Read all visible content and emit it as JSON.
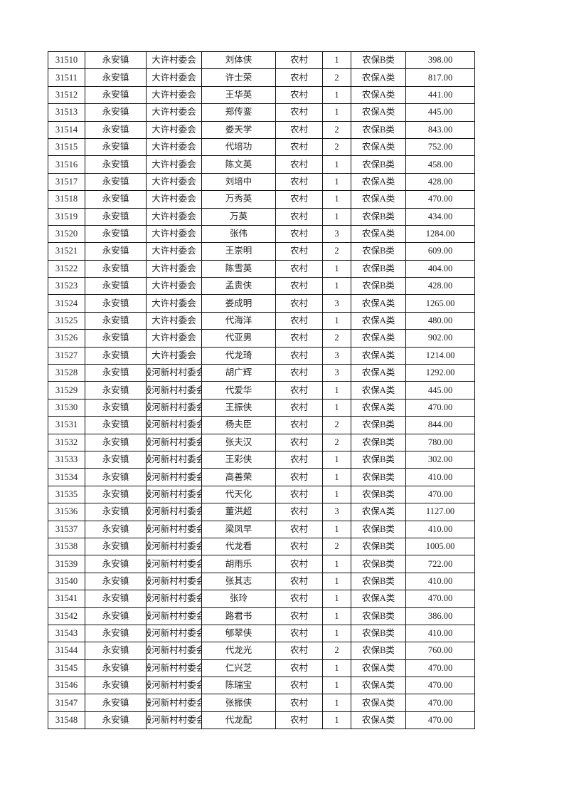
{
  "table": {
    "rows": [
      [
        "31510",
        "永安镇",
        "大许村委会",
        "刘体侠",
        "农村",
        "1",
        "农保B类",
        "398.00"
      ],
      [
        "31511",
        "永安镇",
        "大许村委会",
        "许士荣",
        "农村",
        "2",
        "农保A类",
        "817.00"
      ],
      [
        "31512",
        "永安镇",
        "大许村委会",
        "王华英",
        "农村",
        "1",
        "农保A类",
        "441.00"
      ],
      [
        "31513",
        "永安镇",
        "大许村委会",
        "郑传銮",
        "农村",
        "1",
        "农保A类",
        "445.00"
      ],
      [
        "31514",
        "永安镇",
        "大许村委会",
        "娄天学",
        "农村",
        "2",
        "农保B类",
        "843.00"
      ],
      [
        "31515",
        "永安镇",
        "大许村委会",
        "代培功",
        "农村",
        "2",
        "农保A类",
        "752.00"
      ],
      [
        "31516",
        "永安镇",
        "大许村委会",
        "陈文英",
        "农村",
        "1",
        "农保B类",
        "458.00"
      ],
      [
        "31517",
        "永安镇",
        "大许村委会",
        "刘培中",
        "农村",
        "1",
        "农保A类",
        "428.00"
      ],
      [
        "31518",
        "永安镇",
        "大许村委会",
        "万秀英",
        "农村",
        "1",
        "农保A类",
        "470.00"
      ],
      [
        "31519",
        "永安镇",
        "大许村委会",
        "万英",
        "农村",
        "1",
        "农保B类",
        "434.00"
      ],
      [
        "31520",
        "永安镇",
        "大许村委会",
        "张伟",
        "农村",
        "3",
        "农保A类",
        "1284.00"
      ],
      [
        "31521",
        "永安镇",
        "大许村委会",
        "王崇明",
        "农村",
        "2",
        "农保B类",
        "609.00"
      ],
      [
        "31522",
        "永安镇",
        "大许村委会",
        "陈雪英",
        "农村",
        "1",
        "农保B类",
        "404.00"
      ],
      [
        "31523",
        "永安镇",
        "大许村委会",
        "孟贵侠",
        "农村",
        "1",
        "农保B类",
        "428.00"
      ],
      [
        "31524",
        "永安镇",
        "大许村委会",
        "娄成明",
        "农村",
        "3",
        "农保A类",
        "1265.00"
      ],
      [
        "31525",
        "永安镇",
        "大许村委会",
        "代海洋",
        "农村",
        "1",
        "农保A类",
        "480.00"
      ],
      [
        "31526",
        "永安镇",
        "大许村委会",
        "代亚男",
        "农村",
        "2",
        "农保A类",
        "902.00"
      ],
      [
        "31527",
        "永安镇",
        "大许村委会",
        "代龙琦",
        "农村",
        "3",
        "农保A类",
        "1214.00"
      ],
      [
        "31528",
        "永安镇",
        "殷河新村村委会",
        "胡广辉",
        "农村",
        "3",
        "农保A类",
        "1292.00"
      ],
      [
        "31529",
        "永安镇",
        "殷河新村村委会",
        "代爱华",
        "农村",
        "1",
        "农保A类",
        "445.00"
      ],
      [
        "31530",
        "永安镇",
        "殷河新村村委会",
        "王振侠",
        "农村",
        "1",
        "农保A类",
        "470.00"
      ],
      [
        "31531",
        "永安镇",
        "殷河新村村委会",
        "杨夫臣",
        "农村",
        "2",
        "农保B类",
        "844.00"
      ],
      [
        "31532",
        "永安镇",
        "殷河新村村委会",
        "张夫汉",
        "农村",
        "2",
        "农保B类",
        "780.00"
      ],
      [
        "31533",
        "永安镇",
        "殷河新村村委会",
        "王彩侠",
        "农村",
        "1",
        "农保B类",
        "302.00"
      ],
      [
        "31534",
        "永安镇",
        "殷河新村村委会",
        "高善荣",
        "农村",
        "1",
        "农保B类",
        "410.00"
      ],
      [
        "31535",
        "永安镇",
        "殷河新村村委会",
        "代天化",
        "农村",
        "1",
        "农保B类",
        "470.00"
      ],
      [
        "31536",
        "永安镇",
        "殷河新村村委会",
        "董洪超",
        "农村",
        "3",
        "农保A类",
        "1127.00"
      ],
      [
        "31537",
        "永安镇",
        "殷河新村村委会",
        "梁凤早",
        "农村",
        "1",
        "农保B类",
        "410.00"
      ],
      [
        "31538",
        "永安镇",
        "殷河新村村委会",
        "代龙看",
        "农村",
        "2",
        "农保B类",
        "1005.00"
      ],
      [
        "31539",
        "永安镇",
        "殷河新村村委会",
        "胡雨乐",
        "农村",
        "1",
        "农保B类",
        "722.00"
      ],
      [
        "31540",
        "永安镇",
        "殷河新村村委会",
        "张其志",
        "农村",
        "1",
        "农保B类",
        "410.00"
      ],
      [
        "31541",
        "永安镇",
        "殷河新村村委会",
        "张玲",
        "农村",
        "1",
        "农保A类",
        "470.00"
      ],
      [
        "31542",
        "永安镇",
        "殷河新村村委会",
        "路君书",
        "农村",
        "1",
        "农保B类",
        "386.00"
      ],
      [
        "31543",
        "永安镇",
        "殷河新村村委会",
        "郇翠侠",
        "农村",
        "1",
        "农保B类",
        "410.00"
      ],
      [
        "31544",
        "永安镇",
        "殷河新村村委会",
        "代龙光",
        "农村",
        "2",
        "农保B类",
        "760.00"
      ],
      [
        "31545",
        "永安镇",
        "殷河新村村委会",
        "仁兴芝",
        "农村",
        "1",
        "农保A类",
        "470.00"
      ],
      [
        "31546",
        "永安镇",
        "殷河新村村委会",
        "陈瑞宝",
        "农村",
        "1",
        "农保A类",
        "470.00"
      ],
      [
        "31547",
        "永安镇",
        "殷河新村村委会",
        "张振侠",
        "农村",
        "1",
        "农保A类",
        "470.00"
      ],
      [
        "31548",
        "永安镇",
        "殷河新村村委会",
        "代龙配",
        "农村",
        "1",
        "农保A类",
        "470.00"
      ]
    ]
  }
}
